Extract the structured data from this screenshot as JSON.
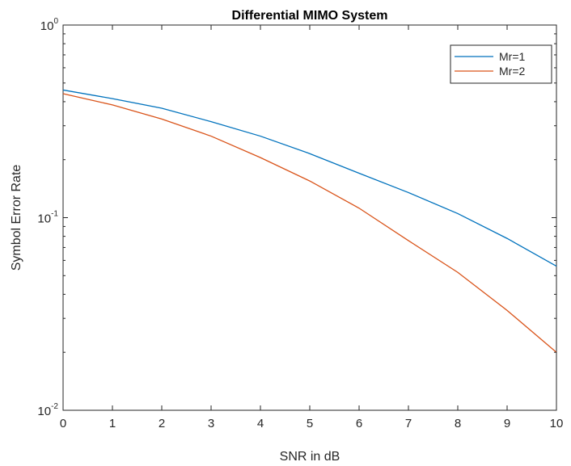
{
  "chart_data": {
    "type": "line",
    "title": "Differential MIMO System",
    "xlabel": "SNR in dB",
    "ylabel": "Symbol Error Rate",
    "xlim": [
      0,
      10
    ],
    "ylim": [
      0.01,
      1
    ],
    "yscale": "log",
    "xticks": [
      "0",
      "1",
      "2",
      "3",
      "4",
      "5",
      "6",
      "7",
      "8",
      "9",
      "10"
    ],
    "yticks": [
      {
        "base": "10",
        "exp": "0",
        "value": 1
      },
      {
        "base": "10",
        "exp": "-1",
        "value": 0.1
      },
      {
        "base": "10",
        "exp": "-2",
        "value": 0.01
      }
    ],
    "grid": false,
    "legend_position": "top-right",
    "x": [
      0,
      1,
      2,
      3,
      4,
      5,
      6,
      7,
      8,
      9,
      10
    ],
    "series": [
      {
        "name": "Mr=1",
        "color": "#0072BD",
        "values": [
          0.46,
          0.415,
          0.37,
          0.315,
          0.265,
          0.215,
          0.17,
          0.135,
          0.105,
          0.078,
          0.056
        ]
      },
      {
        "name": "Mr=2",
        "color": "#D95319",
        "values": [
          0.44,
          0.385,
          0.325,
          0.265,
          0.205,
          0.155,
          0.112,
          0.076,
          0.052,
          0.033,
          0.02
        ]
      }
    ]
  }
}
